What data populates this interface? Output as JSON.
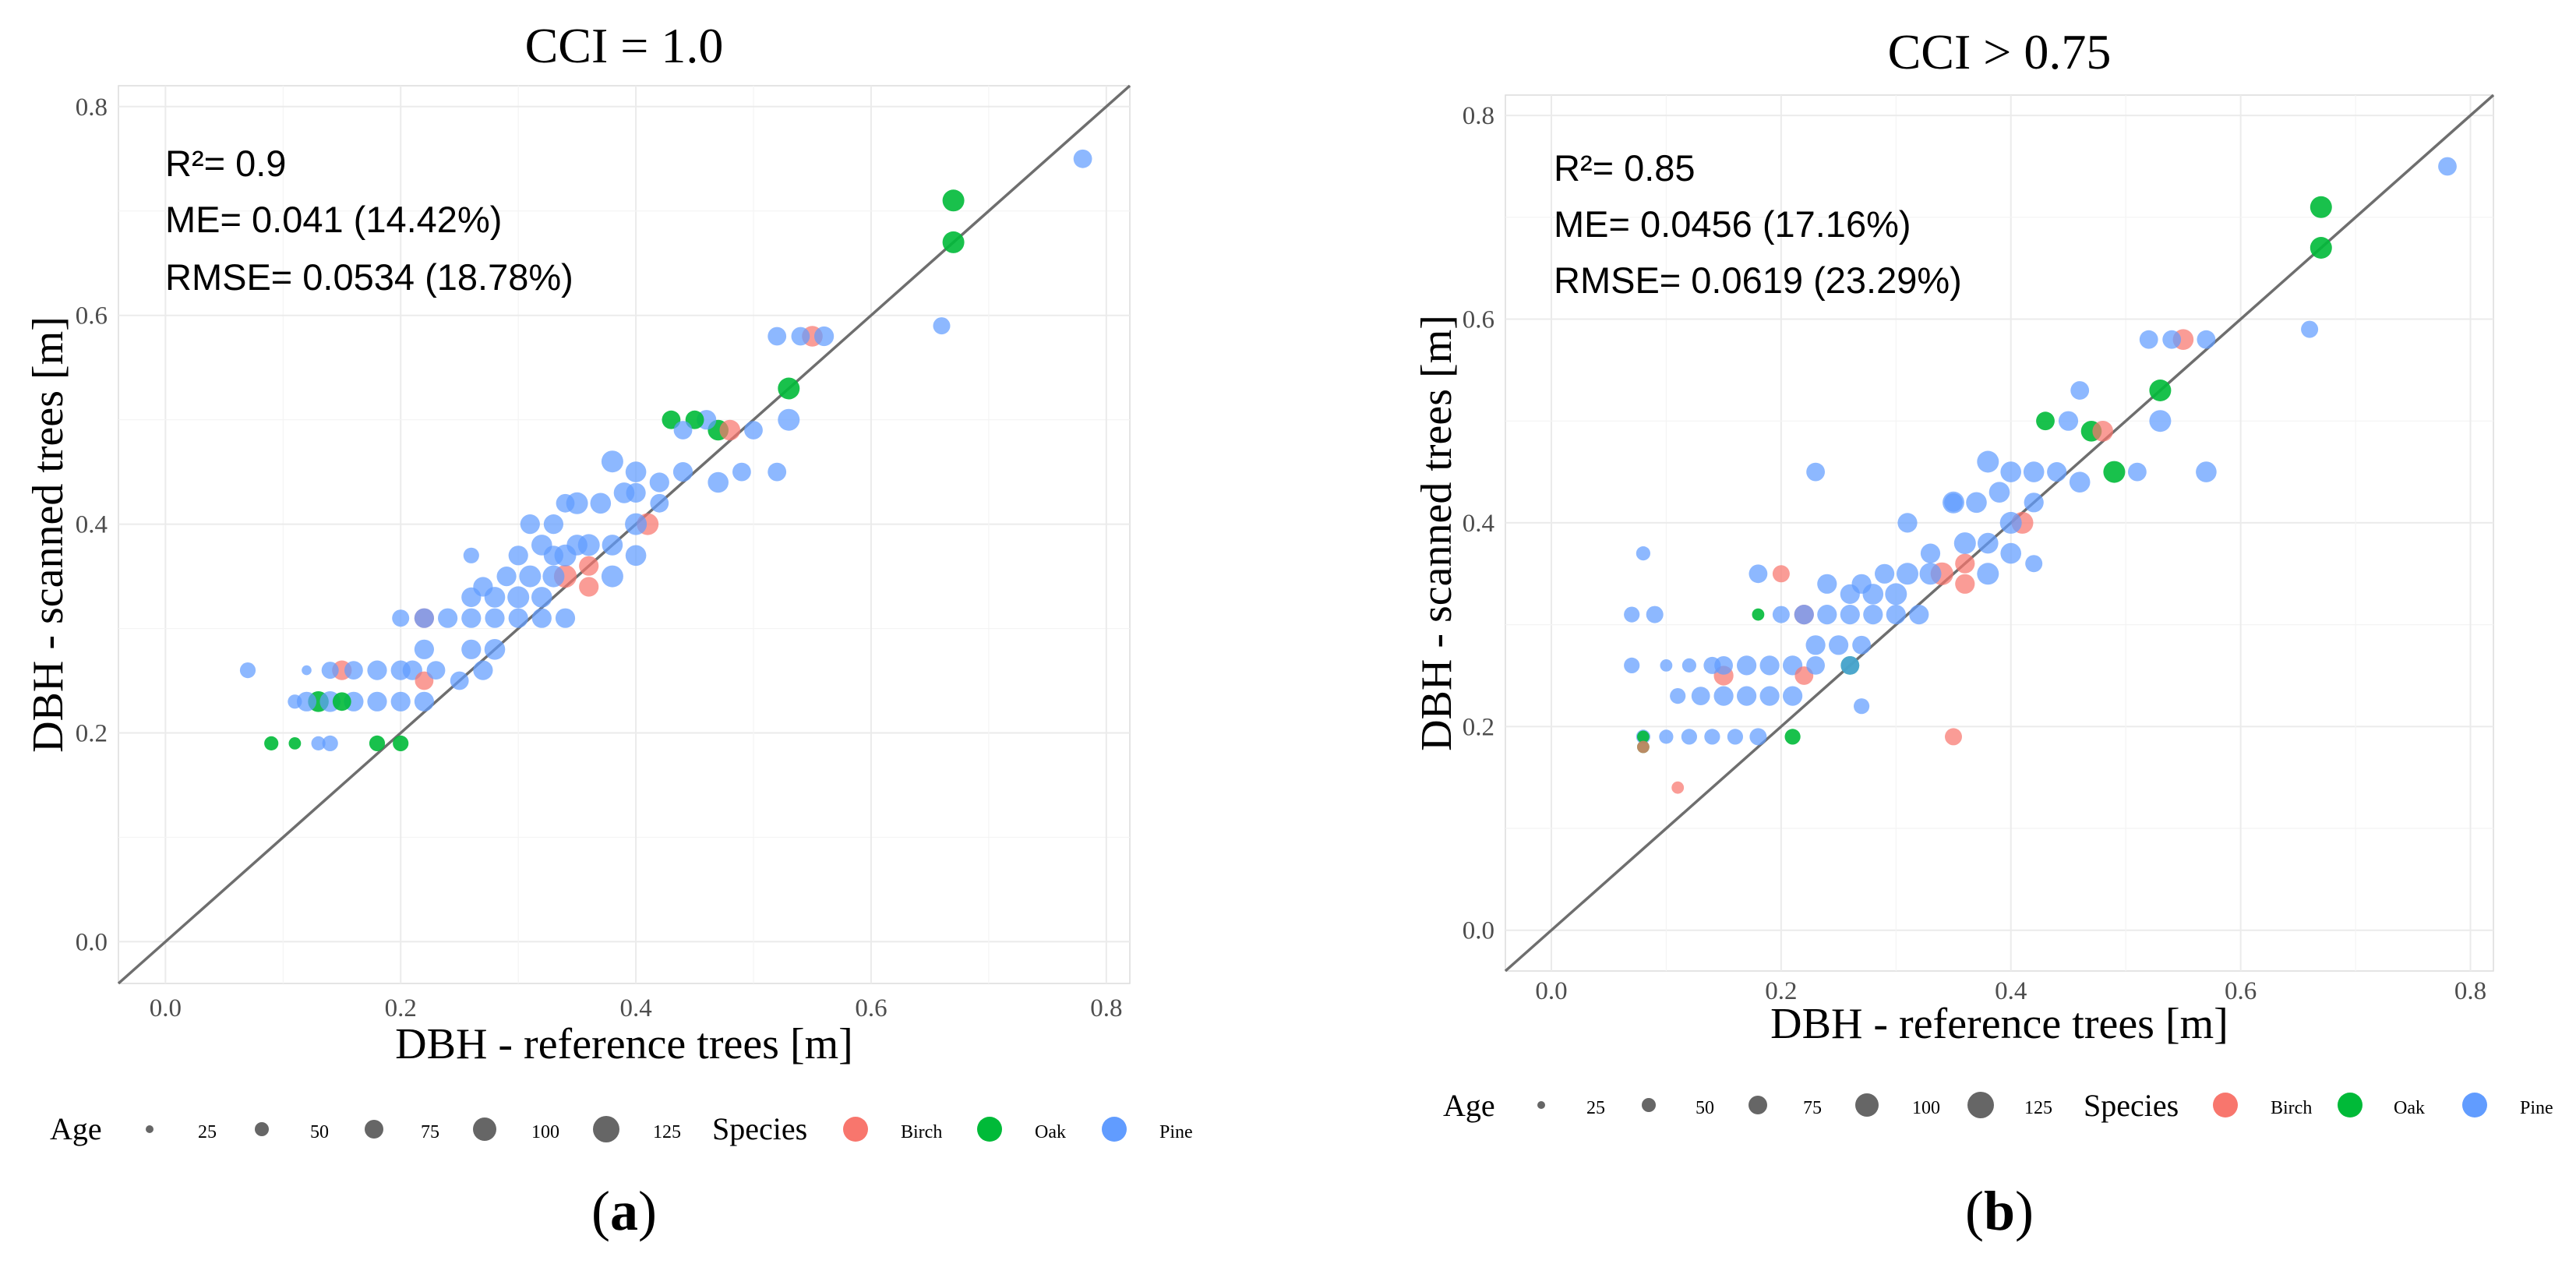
{
  "panels": [
    {
      "title": "CCI = 1.0",
      "panel_label": "a",
      "stats": [
        "R²= 0.9",
        "ME= 0.041 (14.42%)",
        "RMSE= 0.0534 (18.78%)"
      ]
    },
    {
      "title": "CCI > 0.75",
      "panel_label": "b",
      "stats": [
        "R²= 0.85",
        "ME= 0.0456 (17.16%)",
        "RMSE= 0.0619 (23.29%)"
      ]
    }
  ],
  "legend": {
    "age_title": "Age",
    "age_items": [
      "25",
      "50",
      "75",
      "100",
      "125"
    ],
    "species_title": "Species",
    "species_items": [
      {
        "label": "Birch",
        "color": "#F8766D"
      },
      {
        "label": "Oak",
        "color": "#00BA38"
      },
      {
        "label": "Pine",
        "color": "#619CFF"
      }
    ]
  },
  "chart_data": [
    {
      "type": "scatter",
      "title": "CCI = 1.0",
      "xlabel": "DBH - reference trees [m]",
      "ylabel": "DBH - scanned trees [m]",
      "xlim": [
        -0.04,
        0.82
      ],
      "ylim": [
        -0.04,
        0.82
      ],
      "xticks": [
        0.0,
        0.2,
        0.4,
        0.6,
        0.8
      ],
      "yticks": [
        0.0,
        0.2,
        0.4,
        0.6,
        0.8
      ],
      "tick_labels": [
        "0.0",
        "0.2",
        "0.4",
        "0.6",
        "0.8"
      ],
      "identity_line": true,
      "size_variable": "Age",
      "color_variable": "Species",
      "points": [
        [
          0.78,
          0.75,
          "Pine",
          60
        ],
        [
          0.67,
          0.71,
          "Oak",
          90
        ],
        [
          0.67,
          0.67,
          "Oak",
          90
        ],
        [
          0.66,
          0.59,
          "Pine",
          50
        ],
        [
          0.53,
          0.53,
          "Oak",
          90
        ],
        [
          0.53,
          0.5,
          "Pine",
          90
        ],
        [
          0.55,
          0.58,
          "Birch",
          80
        ],
        [
          0.52,
          0.58,
          "Pine",
          60
        ],
        [
          0.54,
          0.58,
          "Pine",
          60
        ],
        [
          0.56,
          0.58,
          "Pine",
          70
        ],
        [
          0.47,
          0.49,
          "Oak",
          80
        ],
        [
          0.46,
          0.5,
          "Pine",
          70
        ],
        [
          0.48,
          0.49,
          "Birch",
          80
        ],
        [
          0.43,
          0.5,
          "Oak",
          60
        ],
        [
          0.45,
          0.5,
          "Oak",
          60
        ],
        [
          0.5,
          0.49,
          "Pine",
          60
        ],
        [
          0.44,
          0.49,
          "Pine",
          60
        ],
        [
          0.52,
          0.45,
          "Pine",
          60
        ],
        [
          0.49,
          0.45,
          "Pine",
          60
        ],
        [
          0.47,
          0.44,
          "Pine",
          80
        ],
        [
          0.44,
          0.45,
          "Pine",
          70
        ],
        [
          0.42,
          0.44,
          "Pine",
          70
        ],
        [
          0.4,
          0.45,
          "Pine",
          80
        ],
        [
          0.38,
          0.46,
          "Pine",
          90
        ],
        [
          0.39,
          0.43,
          "Pine",
          80
        ],
        [
          0.41,
          0.4,
          "Birch",
          90
        ],
        [
          0.4,
          0.4,
          "Pine",
          90
        ],
        [
          0.37,
          0.42,
          "Pine",
          80
        ],
        [
          0.35,
          0.42,
          "Pine",
          90
        ],
        [
          0.36,
          0.38,
          "Pine",
          90
        ],
        [
          0.38,
          0.38,
          "Pine",
          80
        ],
        [
          0.33,
          0.4,
          "Pine",
          70
        ],
        [
          0.31,
          0.4,
          "Pine",
          70
        ],
        [
          0.34,
          0.37,
          "Pine",
          90
        ],
        [
          0.34,
          0.35,
          "Birch",
          100
        ],
        [
          0.36,
          0.34,
          "Birch",
          70
        ],
        [
          0.33,
          0.35,
          "Pine",
          90
        ],
        [
          0.31,
          0.35,
          "Pine",
          90
        ],
        [
          0.29,
          0.35,
          "Pine",
          70
        ],
        [
          0.27,
          0.34,
          "Pine",
          70
        ],
        [
          0.38,
          0.35,
          "Pine",
          90
        ],
        [
          0.4,
          0.37,
          "Pine",
          80
        ],
        [
          0.3,
          0.33,
          "Pine",
          90
        ],
        [
          0.28,
          0.33,
          "Pine",
          80
        ],
        [
          0.26,
          0.33,
          "Pine",
          70
        ],
        [
          0.32,
          0.33,
          "Pine",
          80
        ],
        [
          0.26,
          0.37,
          "Pine",
          40
        ],
        [
          0.24,
          0.31,
          "Pine",
          70
        ],
        [
          0.22,
          0.31,
          "Birch",
          70
        ],
        [
          0.22,
          0.31,
          "Pine",
          70
        ],
        [
          0.26,
          0.31,
          "Pine",
          70
        ],
        [
          0.28,
          0.31,
          "Pine",
          70
        ],
        [
          0.3,
          0.31,
          "Pine",
          70
        ],
        [
          0.32,
          0.31,
          "Pine",
          70
        ],
        [
          0.34,
          0.31,
          "Pine",
          70
        ],
        [
          0.2,
          0.31,
          "Pine",
          50
        ],
        [
          0.28,
          0.28,
          "Pine",
          80
        ],
        [
          0.26,
          0.28,
          "Pine",
          70
        ],
        [
          0.22,
          0.28,
          "Pine",
          70
        ],
        [
          0.27,
          0.26,
          "Pine",
          70
        ],
        [
          0.22,
          0.25,
          "Birch",
          60
        ],
        [
          0.25,
          0.25,
          "Pine",
          60
        ],
        [
          0.18,
          0.26,
          "Pine",
          70
        ],
        [
          0.2,
          0.26,
          "Pine",
          70
        ],
        [
          0.21,
          0.26,
          "Pine",
          70
        ],
        [
          0.23,
          0.26,
          "Pine",
          60
        ],
        [
          0.15,
          0.26,
          "Birch",
          70
        ],
        [
          0.14,
          0.26,
          "Pine",
          50
        ],
        [
          0.16,
          0.26,
          "Pine",
          60
        ],
        [
          0.07,
          0.26,
          "Pine",
          40
        ],
        [
          0.12,
          0.26,
          "Pine",
          10
        ],
        [
          0.13,
          0.23,
          "Oak",
          80
        ],
        [
          0.15,
          0.23,
          "Oak",
          60
        ],
        [
          0.12,
          0.23,
          "Pine",
          70
        ],
        [
          0.14,
          0.23,
          "Pine",
          80
        ],
        [
          0.16,
          0.23,
          "Pine",
          70
        ],
        [
          0.18,
          0.23,
          "Pine",
          70
        ],
        [
          0.2,
          0.23,
          "Pine",
          70
        ],
        [
          0.22,
          0.23,
          "Pine",
          70
        ],
        [
          0.11,
          0.23,
          "Pine",
          30
        ],
        [
          0.09,
          0.19,
          "Oak",
          30
        ],
        [
          0.11,
          0.19,
          "Oak",
          20
        ],
        [
          0.13,
          0.19,
          "Pine",
          30
        ],
        [
          0.14,
          0.19,
          "Pine",
          40
        ],
        [
          0.18,
          0.19,
          "Oak",
          40
        ],
        [
          0.2,
          0.19,
          "Oak",
          40
        ],
        [
          0.4,
          0.43,
          "Pine",
          70
        ],
        [
          0.42,
          0.42,
          "Pine",
          60
        ],
        [
          0.36,
          0.36,
          "Birch",
          70
        ],
        [
          0.33,
          0.37,
          "Pine",
          70
        ],
        [
          0.35,
          0.38,
          "Pine",
          80
        ],
        [
          0.34,
          0.42,
          "Pine",
          60
        ],
        [
          0.3,
          0.37,
          "Pine",
          70
        ],
        [
          0.32,
          0.38,
          "Pine",
          80
        ]
      ]
    },
    {
      "type": "scatter",
      "title": "CCI > 0.75",
      "xlabel": "DBH - reference trees [m]",
      "ylabel": "DBH - scanned trees [m]",
      "xlim": [
        -0.04,
        0.82
      ],
      "ylim": [
        -0.04,
        0.82
      ],
      "xticks": [
        0.0,
        0.2,
        0.4,
        0.6,
        0.8
      ],
      "yticks": [
        0.0,
        0.2,
        0.4,
        0.6,
        0.8
      ],
      "tick_labels": [
        "0.0",
        "0.2",
        "0.4",
        "0.6",
        "0.8"
      ],
      "identity_line": true,
      "size_variable": "Age",
      "color_variable": "Species",
      "points": [
        [
          0.78,
          0.75,
          "Pine",
          60
        ],
        [
          0.67,
          0.71,
          "Oak",
          90
        ],
        [
          0.67,
          0.67,
          "Oak",
          90
        ],
        [
          0.66,
          0.59,
          "Pine",
          50
        ],
        [
          0.53,
          0.53,
          "Oak",
          90
        ],
        [
          0.53,
          0.5,
          "Pine",
          90
        ],
        [
          0.57,
          0.45,
          "Pine",
          80
        ],
        [
          0.55,
          0.58,
          "Birch",
          80
        ],
        [
          0.52,
          0.58,
          "Pine",
          60
        ],
        [
          0.54,
          0.58,
          "Pine",
          60
        ],
        [
          0.57,
          0.58,
          "Pine",
          60
        ],
        [
          0.49,
          0.45,
          "Oak",
          90
        ],
        [
          0.51,
          0.45,
          "Pine",
          60
        ],
        [
          0.47,
          0.49,
          "Oak",
          80
        ],
        [
          0.48,
          0.49,
          "Birch",
          80
        ],
        [
          0.43,
          0.5,
          "Oak",
          60
        ],
        [
          0.46,
          0.53,
          "Pine",
          60
        ],
        [
          0.45,
          0.5,
          "Pine",
          70
        ],
        [
          0.46,
          0.44,
          "Pine",
          80
        ],
        [
          0.44,
          0.45,
          "Pine",
          70
        ],
        [
          0.42,
          0.45,
          "Pine",
          80
        ],
        [
          0.4,
          0.45,
          "Pine",
          80
        ],
        [
          0.38,
          0.46,
          "Pine",
          90
        ],
        [
          0.39,
          0.43,
          "Pine",
          80
        ],
        [
          0.41,
          0.4,
          "Birch",
          90
        ],
        [
          0.4,
          0.4,
          "Pine",
          90
        ],
        [
          0.42,
          0.36,
          "Pine",
          50
        ],
        [
          0.37,
          0.42,
          "Pine",
          80
        ],
        [
          0.35,
          0.42,
          "Pine",
          90
        ],
        [
          0.36,
          0.38,
          "Pine",
          90
        ],
        [
          0.38,
          0.38,
          "Pine",
          80
        ],
        [
          0.34,
          0.35,
          "Birch",
          100
        ],
        [
          0.36,
          0.34,
          "Birch",
          70
        ],
        [
          0.33,
          0.35,
          "Pine",
          90
        ],
        [
          0.31,
          0.35,
          "Pine",
          90
        ],
        [
          0.29,
          0.35,
          "Pine",
          70
        ],
        [
          0.27,
          0.34,
          "Pine",
          70
        ],
        [
          0.38,
          0.35,
          "Pine",
          90
        ],
        [
          0.4,
          0.37,
          "Pine",
          80
        ],
        [
          0.31,
          0.4,
          "Pine",
          70
        ],
        [
          0.3,
          0.33,
          "Pine",
          90
        ],
        [
          0.28,
          0.33,
          "Pine",
          80
        ],
        [
          0.26,
          0.33,
          "Pine",
          70
        ],
        [
          0.24,
          0.34,
          "Pine",
          70
        ],
        [
          0.22,
          0.31,
          "Birch",
          70
        ],
        [
          0.22,
          0.31,
          "Pine",
          70
        ],
        [
          0.24,
          0.31,
          "Pine",
          70
        ],
        [
          0.26,
          0.31,
          "Pine",
          70
        ],
        [
          0.28,
          0.31,
          "Pine",
          70
        ],
        [
          0.3,
          0.31,
          "Pine",
          70
        ],
        [
          0.32,
          0.31,
          "Pine",
          70
        ],
        [
          0.18,
          0.31,
          "Oak",
          20
        ],
        [
          0.2,
          0.31,
          "Pine",
          50
        ],
        [
          0.2,
          0.35,
          "Birch",
          50
        ],
        [
          0.18,
          0.35,
          "Pine",
          60
        ],
        [
          0.08,
          0.37,
          "Pine",
          30
        ],
        [
          0.07,
          0.31,
          "Pine",
          40
        ],
        [
          0.09,
          0.31,
          "Pine",
          50
        ],
        [
          0.23,
          0.45,
          "Pine",
          60
        ],
        [
          0.23,
          0.28,
          "Pine",
          70
        ],
        [
          0.25,
          0.28,
          "Pine",
          70
        ],
        [
          0.27,
          0.28,
          "Pine",
          60
        ],
        [
          0.26,
          0.26,
          "Oak",
          60
        ],
        [
          0.26,
          0.26,
          "Pine",
          60
        ],
        [
          0.22,
          0.25,
          "Birch",
          60
        ],
        [
          0.15,
          0.25,
          "Birch",
          70
        ],
        [
          0.15,
          0.26,
          "Pine",
          60
        ],
        [
          0.17,
          0.26,
          "Pine",
          70
        ],
        [
          0.19,
          0.26,
          "Pine",
          70
        ],
        [
          0.21,
          0.26,
          "Pine",
          70
        ],
        [
          0.23,
          0.26,
          "Pine",
          60
        ],
        [
          0.12,
          0.26,
          "Pine",
          30
        ],
        [
          0.07,
          0.26,
          "Pine",
          40
        ],
        [
          0.1,
          0.26,
          "Pine",
          20
        ],
        [
          0.14,
          0.26,
          "Pine",
          50
        ],
        [
          0.11,
          0.23,
          "Pine",
          40
        ],
        [
          0.13,
          0.23,
          "Pine",
          60
        ],
        [
          0.15,
          0.23,
          "Pine",
          70
        ],
        [
          0.17,
          0.23,
          "Pine",
          70
        ],
        [
          0.19,
          0.23,
          "Pine",
          70
        ],
        [
          0.21,
          0.23,
          "Pine",
          70
        ],
        [
          0.27,
          0.22,
          "Pine",
          40
        ],
        [
          0.08,
          0.19,
          "Oak",
          20
        ],
        [
          0.08,
          0.19,
          "Pine",
          30
        ],
        [
          0.1,
          0.19,
          "Pine",
          30
        ],
        [
          0.12,
          0.19,
          "Pine",
          40
        ],
        [
          0.14,
          0.19,
          "Pine",
          40
        ],
        [
          0.16,
          0.19,
          "Pine",
          40
        ],
        [
          0.18,
          0.19,
          "Pine",
          50
        ],
        [
          0.21,
          0.19,
          "Oak",
          40
        ],
        [
          0.08,
          0.18,
          "Oak",
          20
        ],
        [
          0.08,
          0.18,
          "Birch",
          20
        ],
        [
          0.11,
          0.14,
          "Birch",
          20
        ],
        [
          0.35,
          0.19,
          "Birch",
          50
        ],
        [
          0.42,
          0.42,
          "Pine",
          70
        ],
        [
          0.36,
          0.36,
          "Birch",
          70
        ],
        [
          0.33,
          0.37,
          "Pine",
          70
        ],
        [
          0.35,
          0.42,
          "Pine",
          60
        ]
      ]
    }
  ]
}
